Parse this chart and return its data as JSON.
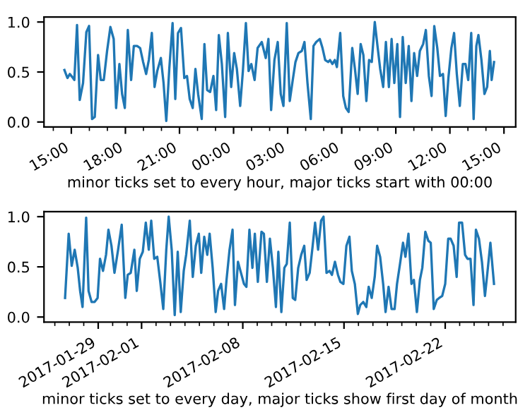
{
  "chart_data": [
    {
      "type": "line",
      "xlabel": "minor ticks set to every hour, major ticks start with 00:00",
      "color": "#1f77b4",
      "x": [
        "2017-01-01T14:37",
        "2017-01-01T14:47",
        "2017-01-01T14:55",
        "2017-01-01T15:03",
        "2017-01-01T15:10",
        "2017-01-01T15:19",
        "2017-01-01T15:28",
        "2017-01-01T15:39",
        "2017-01-01T15:50",
        "2017-01-01T15:59",
        "2017-01-01T16:09",
        "2017-01-01T16:18",
        "2017-01-01T16:29",
        "2017-01-01T16:38",
        "2017-01-01T16:48",
        "2017-01-01T16:59",
        "2017-01-01T17:10",
        "2017-01-01T17:21",
        "2017-01-01T17:29",
        "2017-01-01T17:40",
        "2017-01-01T17:49",
        "2017-01-01T17:58",
        "2017-01-01T18:08",
        "2017-01-01T18:19",
        "2017-01-01T18:28",
        "2017-01-01T18:39",
        "2017-01-01T18:49",
        "2017-01-01T18:59",
        "2017-01-01T19:09",
        "2017-01-01T19:18",
        "2017-01-01T19:28",
        "2017-01-01T19:37",
        "2017-01-01T19:46",
        "2017-01-01T19:58",
        "2017-01-01T20:07",
        "2017-01-01T20:16",
        "2017-01-01T20:26",
        "2017-01-01T20:37",
        "2017-01-01T20:46",
        "2017-01-01T20:55",
        "2017-01-01T21:05",
        "2017-01-01T21:16",
        "2017-01-01T21:25",
        "2017-01-01T21:34",
        "2017-01-01T21:44",
        "2017-01-01T21:53",
        "2017-01-01T22:02",
        "2017-01-01T22:14",
        "2017-01-01T22:23",
        "2017-01-01T22:32",
        "2017-01-01T22:42",
        "2017-01-01T22:53",
        "2017-01-01T23:02",
        "2017-01-01T23:11",
        "2017-01-01T23:21",
        "2017-01-01T23:32",
        "2017-01-01T23:41",
        "2017-01-01T23:52",
        "2017-01-02T00:02",
        "2017-01-02T00:11",
        "2017-01-02T00:22",
        "2017-01-02T00:31",
        "2017-01-02T00:41",
        "2017-01-02T00:50",
        "2017-01-02T00:59",
        "2017-01-02T01:10",
        "2017-01-02T01:20",
        "2017-01-02T01:34",
        "2017-01-02T01:47",
        "2017-01-02T01:56",
        "2017-01-02T02:05",
        "2017-01-02T02:16",
        "2017-01-02T02:27",
        "2017-01-02T02:37",
        "2017-01-02T02:46",
        "2017-01-02T02:57",
        "2017-01-02T03:07",
        "2017-01-02T03:17",
        "2017-01-02T03:26",
        "2017-01-02T03:36",
        "2017-01-02T03:47",
        "2017-01-02T03:56",
        "2017-01-02T04:06",
        "2017-01-02T04:17",
        "2017-01-02T04:26",
        "2017-01-02T04:35",
        "2017-01-02T04:47",
        "2017-01-02T04:56",
        "2017-01-02T05:05",
        "2017-01-02T05:15",
        "2017-01-02T05:21",
        "2017-01-02T05:29",
        "2017-01-02T05:37",
        "2017-01-02T05:44",
        "2017-01-02T05:55",
        "2017-01-02T06:05",
        "2017-01-02T06:14",
        "2017-01-02T06:23",
        "2017-01-02T06:35",
        "2017-01-02T06:44",
        "2017-01-02T06:53",
        "2017-01-02T07:03",
        "2017-01-02T07:12",
        "2017-01-02T07:22",
        "2017-01-02T07:31",
        "2017-01-02T07:40",
        "2017-01-02T07:50",
        "2017-01-02T07:59",
        "2017-01-02T08:08",
        "2017-01-02T08:18",
        "2017-01-02T08:27",
        "2017-01-02T08:37",
        "2017-01-02T08:46",
        "2017-01-02T08:55",
        "2017-01-02T09:05",
        "2017-01-02T09:14",
        "2017-01-02T09:23",
        "2017-01-02T09:33",
        "2017-01-02T09:43",
        "2017-01-02T09:52",
        "2017-01-02T10:01",
        "2017-01-02T10:11",
        "2017-01-02T10:20",
        "2017-01-02T10:31",
        "2017-01-02T10:40",
        "2017-01-02T10:50",
        "2017-01-02T10:59",
        "2017-01-02T11:08",
        "2017-01-02T11:18",
        "2017-01-02T11:27",
        "2017-01-02T11:37",
        "2017-01-02T11:46",
        "2017-01-02T11:55",
        "2017-01-02T12:05",
        "2017-01-02T12:14",
        "2017-01-02T12:23",
        "2017-01-02T12:33",
        "2017-01-02T12:43",
        "2017-01-02T12:52",
        "2017-01-02T13:01",
        "2017-01-02T13:11",
        "2017-01-02T13:19",
        "2017-01-02T13:28",
        "2017-01-02T13:35",
        "2017-01-02T13:45",
        "2017-01-02T13:55",
        "2017-01-02T14:04",
        "2017-01-02T14:13",
        "2017-01-02T14:19",
        "2017-01-02T14:27"
      ],
      "values": [
        0.52,
        0.44,
        0.48,
        0.45,
        0.42,
        0.97,
        0.22,
        0.39,
        0.9,
        0.96,
        0.03,
        0.05,
        0.67,
        0.42,
        0.42,
        0.71,
        0.95,
        0.83,
        0.14,
        0.58,
        0.28,
        0.14,
        0.92,
        0.42,
        0.76,
        0.76,
        0.74,
        0.6,
        0.48,
        0.62,
        0.89,
        0.35,
        0.51,
        0.64,
        0.39,
        0.01,
        0.53,
        0.99,
        0.23,
        0.89,
        0.94,
        0.44,
        0.46,
        0.23,
        0.14,
        0.53,
        0.28,
        0.03,
        0.78,
        0.32,
        0.3,
        0.46,
        0.12,
        0.87,
        0.58,
        0.05,
        0.89,
        0.35,
        0.69,
        0.53,
        0.16,
        0.51,
        0.99,
        0.51,
        0.58,
        0.42,
        0.74,
        0.8,
        0.64,
        0.83,
        0.12,
        0.62,
        0.8,
        0.28,
        0.16,
        0.99,
        0.21,
        0.42,
        0.6,
        0.69,
        0.71,
        0.8,
        0.39,
        0.03,
        0.76,
        0.8,
        0.83,
        0.74,
        0.62,
        0.6,
        0.62,
        0.58,
        0.62,
        0.55,
        0.89,
        0.26,
        0.14,
        0.1,
        0.74,
        0.53,
        0.28,
        0.78,
        0.67,
        0.21,
        0.62,
        0.6,
        1.0,
        0.76,
        0.53,
        0.35,
        0.8,
        0.35,
        0.83,
        0.39,
        0.78,
        0.05,
        0.85,
        0.39,
        0.76,
        0.21,
        0.69,
        0.46,
        0.71,
        0.78,
        0.92,
        0.46,
        0.26,
        0.96,
        0.74,
        0.46,
        0.48,
        0.06,
        0.44,
        0.74,
        0.89,
        0.48,
        0.16,
        0.58,
        0.58,
        0.42,
        0.89,
        0.03,
        0.76,
        0.87,
        0.62,
        0.28,
        0.35,
        0.71,
        0.42,
        0.6
      ],
      "xlim": [
        "2017-01-01T13:29",
        "2017-01-02T15:39"
      ],
      "ylim": [
        -0.05,
        1.05
      ],
      "yticks": [
        {
          "value": 0,
          "label": "0.0"
        },
        {
          "value": 0.5,
          "label": "0.5"
        },
        {
          "value": 1,
          "label": "1.0"
        }
      ],
      "xticks": [
        {
          "value": "2017-01-01T14:00",
          "label": null
        },
        {
          "value": "2017-01-01T15:00",
          "label": "15:00"
        },
        {
          "value": "2017-01-01T16:00",
          "label": null
        },
        {
          "value": "2017-01-01T17:00",
          "label": null
        },
        {
          "value": "2017-01-01T18:00",
          "label": "18:00"
        },
        {
          "value": "2017-01-01T19:00",
          "label": null
        },
        {
          "value": "2017-01-01T20:00",
          "label": null
        },
        {
          "value": "2017-01-01T21:00",
          "label": "21:00"
        },
        {
          "value": "2017-01-01T22:00",
          "label": null
        },
        {
          "value": "2017-01-01T23:00",
          "label": null
        },
        {
          "value": "2017-01-02T00:00",
          "label": "00:00"
        },
        {
          "value": "2017-01-02T01:00",
          "label": null
        },
        {
          "value": "2017-01-02T02:00",
          "label": null
        },
        {
          "value": "2017-01-02T03:00",
          "label": "03:00"
        },
        {
          "value": "2017-01-02T04:00",
          "label": null
        },
        {
          "value": "2017-01-02T05:00",
          "label": null
        },
        {
          "value": "2017-01-02T06:00",
          "label": "06:00"
        },
        {
          "value": "2017-01-02T07:00",
          "label": null
        },
        {
          "value": "2017-01-02T08:00",
          "label": null
        },
        {
          "value": "2017-01-02T09:00",
          "label": "09:00"
        },
        {
          "value": "2017-01-02T10:00",
          "label": null
        },
        {
          "value": "2017-01-02T11:00",
          "label": null
        },
        {
          "value": "2017-01-02T12:00",
          "label": "12:00"
        },
        {
          "value": "2017-01-02T13:00",
          "label": null
        },
        {
          "value": "2017-01-02T14:00",
          "label": null
        },
        {
          "value": "2017-01-02T15:00",
          "label": "15:00"
        }
      ]
    },
    {
      "type": "line",
      "xlabel": "minor ticks set to every day, major ticks show first day of month",
      "color": "#1f77b4",
      "x": [
        "2017-01-26T17:00",
        "2017-01-26T23:00",
        "2017-01-27T04:00",
        "2017-01-27T09:00",
        "2017-01-27T14:00",
        "2017-01-27T18:00",
        "2017-01-27T22:00",
        "2017-01-28T04:00",
        "2017-01-28T08:00",
        "2017-01-28T13:00",
        "2017-01-28T18:00",
        "2017-01-28T23:00",
        "2017-01-29T03:00",
        "2017-01-29T08:00",
        "2017-01-29T13:00",
        "2017-01-29T17:00",
        "2017-01-29T22:00",
        "2017-01-30T03:00",
        "2017-01-30T09:00",
        "2017-01-30T15:00",
        "2017-01-30T21:00",
        "2017-01-31T01:00",
        "2017-01-31T06:00",
        "2017-01-31T12:00",
        "2017-01-31T16:00",
        "2017-01-31T21:00",
        "2017-02-01T02:00",
        "2017-02-01T07:00",
        "2017-02-01T12:00",
        "2017-02-01T16:00",
        "2017-02-01T21:00",
        "2017-02-02T02:00",
        "2017-02-02T07:00",
        "2017-02-02T12:00",
        "2017-02-02T17:00",
        "2017-02-02T21:00",
        "2017-02-03T02:00",
        "2017-02-03T07:00",
        "2017-02-03T12:00",
        "2017-02-03T17:00",
        "2017-02-03T22:00",
        "2017-02-04T02:00",
        "2017-02-04T08:00",
        "2017-02-04T13:00",
        "2017-02-04T18:00",
        "2017-02-04T23:00",
        "2017-02-05T03:00",
        "2017-02-05T08:00",
        "2017-02-05T13:00",
        "2017-02-05T17:00",
        "2017-02-05T22:00",
        "2017-02-06T03:00",
        "2017-02-06T07:00",
        "2017-02-06T12:00",
        "2017-02-06T17:00",
        "2017-02-06T21:00",
        "2017-02-07T02:00",
        "2017-02-07T07:00",
        "2017-02-07T11:00",
        "2017-02-07T16:00",
        "2017-02-07T21:00",
        "2017-02-08T02:00",
        "2017-02-08T06:00",
        "2017-02-08T11:00",
        "2017-02-08T16:00",
        "2017-02-08T20:00",
        "2017-02-09T01:00",
        "2017-02-09T07:00",
        "2017-02-09T11:00",
        "2017-02-09T16:00",
        "2017-02-09T21:00",
        "2017-02-10T02:00",
        "2017-02-10T07:00",
        "2017-02-10T11:00",
        "2017-02-10T16:00",
        "2017-02-10T21:00",
        "2017-02-11T01:00",
        "2017-02-11T06:00",
        "2017-02-11T11:00",
        "2017-02-11T15:00",
        "2017-02-11T20:00",
        "2017-02-12T01:00",
        "2017-02-12T06:00",
        "2017-02-12T10:00",
        "2017-02-12T15:00",
        "2017-02-12T20:00",
        "2017-02-13T00:00",
        "2017-02-13T05:00",
        "2017-02-13T10:00",
        "2017-02-13T14:00",
        "2017-02-13T19:00",
        "2017-02-14T00:00",
        "2017-02-14T04:00",
        "2017-02-14T09:00",
        "2017-02-14T14:00",
        "2017-02-14T18:00",
        "2017-02-14T23:00",
        "2017-02-15T04:00",
        "2017-02-15T09:00",
        "2017-02-15T13:00",
        "2017-02-15T18:00",
        "2017-02-15T23:00",
        "2017-02-16T03:00",
        "2017-02-16T08:00",
        "2017-02-16T13:00",
        "2017-02-16T17:00",
        "2017-02-16T22:00",
        "2017-02-17T03:00",
        "2017-02-17T07:00",
        "2017-02-17T12:00",
        "2017-02-17T17:00",
        "2017-02-17T21:00",
        "2017-02-18T02:00",
        "2017-02-18T07:00",
        "2017-02-18T12:00",
        "2017-02-18T16:00",
        "2017-02-18T21:00",
        "2017-02-19T02:00",
        "2017-02-19T06:00",
        "2017-02-19T11:00",
        "2017-02-19T16:00",
        "2017-02-19T20:00",
        "2017-02-20T01:00",
        "2017-02-20T06:00",
        "2017-02-20T10:00",
        "2017-02-20T15:00",
        "2017-02-20T20:00",
        "2017-02-21T00:00",
        "2017-02-21T05:00",
        "2017-02-21T10:00",
        "2017-02-21T14:00",
        "2017-02-21T19:00",
        "2017-02-22T00:00",
        "2017-02-22T05:00",
        "2017-02-22T09:00",
        "2017-02-22T14:00",
        "2017-02-22T19:00",
        "2017-02-22T23:00",
        "2017-02-23T04:00",
        "2017-02-23T09:00",
        "2017-02-23T13:00",
        "2017-02-23T18:00",
        "2017-02-23T23:00",
        "2017-02-24T03:00",
        "2017-02-24T08:00",
        "2017-02-24T13:00",
        "2017-02-24T18:00",
        "2017-02-24T22:00",
        "2017-02-25T03:00",
        "2017-02-25T09:00"
      ],
      "values": [
        0.19,
        0.83,
        0.51,
        0.67,
        0.49,
        0.26,
        0.1,
        0.99,
        0.26,
        0.15,
        0.15,
        0.19,
        0.58,
        0.46,
        0.62,
        0.87,
        0.71,
        0.44,
        0.67,
        0.92,
        0.19,
        0.42,
        0.44,
        0.67,
        0.26,
        0.58,
        0.65,
        0.94,
        0.67,
        0.96,
        0.58,
        0.6,
        0.35,
        0.08,
        0.67,
        1.0,
        0.67,
        0.02,
        0.65,
        0.05,
        0.46,
        0.62,
        0.96,
        0.4,
        0.71,
        0.83,
        0.44,
        0.8,
        0.62,
        0.83,
        0.49,
        0.05,
        0.26,
        0.33,
        0.08,
        0.37,
        0.67,
        0.87,
        0.12,
        0.55,
        0.44,
        0.33,
        0.3,
        0.87,
        0.49,
        0.83,
        0.35,
        0.85,
        0.83,
        0.35,
        0.78,
        0.49,
        0.1,
        0.65,
        0.05,
        0.49,
        0.53,
        0.94,
        0.19,
        0.17,
        0.49,
        0.62,
        0.71,
        0.37,
        0.44,
        0.71,
        0.94,
        0.67,
        0.96,
        1.0,
        0.44,
        0.46,
        0.42,
        0.55,
        0.42,
        0.35,
        0.33,
        0.71,
        0.8,
        0.46,
        0.33,
        0.03,
        0.12,
        0.15,
        0.1,
        0.3,
        0.19,
        0.4,
        0.71,
        0.6,
        0.33,
        0.05,
        0.3,
        0.08,
        0.08,
        0.33,
        0.53,
        0.74,
        0.6,
        0.83,
        0.33,
        0.37,
        0.05,
        0.37,
        0.49,
        0.85,
        0.76,
        0.74,
        0.08,
        0.17,
        0.19,
        0.21,
        0.33,
        0.78,
        0.78,
        0.71,
        0.4,
        0.94,
        0.94,
        0.62,
        0.58,
        0.58,
        0.12,
        0.87,
        0.78,
        0.55,
        0.21,
        0.44,
        0.74,
        0.33
      ],
      "xlim": [
        "2017-01-25T06:00",
        "2017-02-26T21:00"
      ],
      "ylim": [
        -0.05,
        1.05
      ],
      "yticks": [
        {
          "value": 0,
          "label": "0.0"
        },
        {
          "value": 0.5,
          "label": "0.5"
        },
        {
          "value": 1,
          "label": "1.0"
        }
      ],
      "xticks": [
        {
          "value": "2017-01-26",
          "label": null
        },
        {
          "value": "2017-01-27",
          "label": null
        },
        {
          "value": "2017-01-28",
          "label": null
        },
        {
          "value": "2017-01-29",
          "label": "2017-01-29"
        },
        {
          "value": "2017-01-30",
          "label": null
        },
        {
          "value": "2017-01-31",
          "label": null
        },
        {
          "value": "2017-02-01",
          "label": "2017-02-01"
        },
        {
          "value": "2017-02-02",
          "label": null
        },
        {
          "value": "2017-02-03",
          "label": null
        },
        {
          "value": "2017-02-04",
          "label": null
        },
        {
          "value": "2017-02-05",
          "label": null
        },
        {
          "value": "2017-02-06",
          "label": null
        },
        {
          "value": "2017-02-07",
          "label": null
        },
        {
          "value": "2017-02-08",
          "label": "2017-02-08"
        },
        {
          "value": "2017-02-09",
          "label": null
        },
        {
          "value": "2017-02-10",
          "label": null
        },
        {
          "value": "2017-02-11",
          "label": null
        },
        {
          "value": "2017-02-12",
          "label": null
        },
        {
          "value": "2017-02-13",
          "label": null
        },
        {
          "value": "2017-02-14",
          "label": null
        },
        {
          "value": "2017-02-15",
          "label": "2017-02-15"
        },
        {
          "value": "2017-02-16",
          "label": null
        },
        {
          "value": "2017-02-17",
          "label": null
        },
        {
          "value": "2017-02-18",
          "label": null
        },
        {
          "value": "2017-02-19",
          "label": null
        },
        {
          "value": "2017-02-20",
          "label": null
        },
        {
          "value": "2017-02-21",
          "label": null
        },
        {
          "value": "2017-02-22",
          "label": "2017-02-22"
        },
        {
          "value": "2017-02-23",
          "label": null
        },
        {
          "value": "2017-02-24",
          "label": null
        },
        {
          "value": "2017-02-25",
          "label": null
        },
        {
          "value": "2017-02-26",
          "label": null
        }
      ]
    }
  ]
}
